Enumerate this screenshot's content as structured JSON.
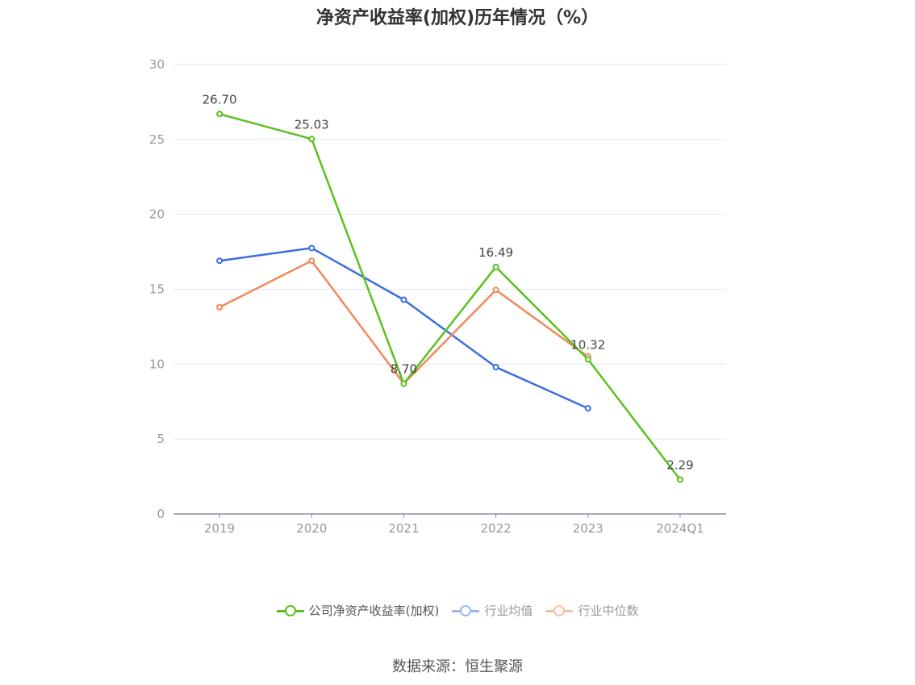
{
  "title": "净资产收益率(加权)历年情况（%）",
  "source": "数据来源：恒生聚源",
  "chart_data": {
    "type": "line",
    "categories": [
      "2019",
      "2020",
      "2021",
      "2022",
      "2023",
      "2024Q1"
    ],
    "ylim": [
      0,
      30
    ],
    "yticks": [
      0,
      5,
      10,
      15,
      20,
      25,
      30
    ],
    "grid": true,
    "legend_position": "bottom",
    "series": [
      {
        "name": "公司净资产收益率(加权)",
        "color": "#5ac11f",
        "values": [
          26.7,
          25.03,
          8.7,
          16.49,
          10.32,
          2.29
        ],
        "labels": [
          "26.70",
          "25.03",
          "8.70",
          "16.49",
          "10.32",
          "2.29"
        ]
      },
      {
        "name": "行业均值",
        "color": "#3b6fe0",
        "values": [
          16.9,
          17.75,
          14.3,
          9.8,
          7.05,
          null
        ]
      },
      {
        "name": "行业中位数",
        "color": "#f0895a",
        "values": [
          13.8,
          16.9,
          8.7,
          14.95,
          10.5,
          null
        ]
      }
    ]
  },
  "legend": [
    {
      "label": "公司净资产收益率(加权)",
      "color": "#5ac11f",
      "dot_color": "#5ac11f"
    },
    {
      "label": "行业均值",
      "color": "#9ab7ef",
      "dot_color": "#9ab7ef"
    },
    {
      "label": "行业中位数",
      "color": "#f6c0a8",
      "dot_color": "#f6c0a8"
    }
  ]
}
